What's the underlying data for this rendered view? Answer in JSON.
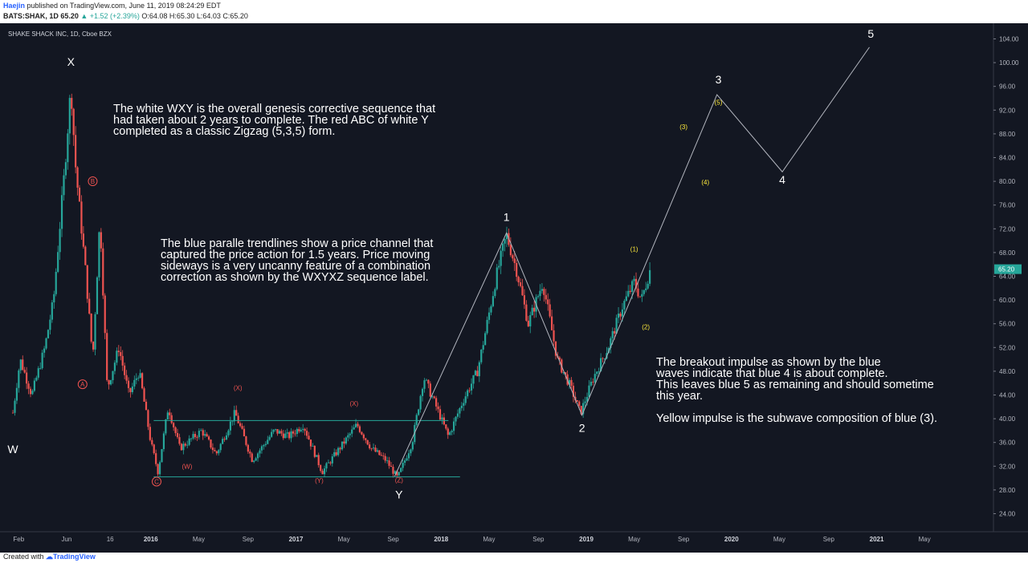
{
  "header": {
    "author": "Haejin",
    "published": "published on TradingView.com, June 11, 2019 08:24:29 EDT",
    "symbol_line_prefix": "BATS:SHAK, 1D 65.20",
    "change": "▲ +1.52 (+2.39%)",
    "ohlc": "O:64.08 H:65.30 L:64.03 C:65.20"
  },
  "chart_title": "SHAKE SHACK INC, 1D, Cboe BZX",
  "notes": {
    "wxy": "The white WXY is the overall genesis corrective sequence that\nhad taken about 2 years to complete. The red ABC of white Y\ncompleted as a classic Zigzag (5,3,5) form.",
    "channel": "The blue paralle trendlines show a price channel that\ncaptured the price action for 1.5 years. Price moving\nsideways is a very uncanny feature of a combination\ncorrection as shown by the WXYXZ sequence label.",
    "breakout": "The breakout impulse as shown by the blue\nwaves indicate that blue 4 is about complete.\nThis leaves blue 5 as remaining and should sometime\nthis year.\n\nYellow impulse is the subwave composition of blue (3)."
  },
  "footer": {
    "created_with": "Created with",
    "brand": "TradingView"
  },
  "chart_data": {
    "type": "candlestick",
    "title": "SHAKE SHACK INC, 1D, Cboe BZX",
    "y_axis": {
      "ticks": [
        24,
        28,
        32,
        36,
        40,
        44,
        48,
        52,
        56,
        60,
        64,
        68,
        72,
        76,
        80,
        84,
        88,
        92,
        96,
        100,
        104
      ],
      "tick_labels": [
        "24.00",
        "28.00",
        "32.00",
        "36.00",
        "40.00",
        "44.00",
        "48.00",
        "52.00",
        "56.00",
        "60.00",
        "64.00",
        "68.00",
        "72.00",
        "76.00",
        "80.00",
        "84.00",
        "88.00",
        "92.00",
        "96.00",
        "100.00",
        "104.00"
      ],
      "ylim": [
        21.5,
        106.5
      ],
      "position": "right"
    },
    "x_axis": {
      "ticks": [
        "Feb",
        "Jun",
        "16",
        "2016",
        "May",
        "Sep",
        "2017",
        "May",
        "Sep",
        "2018",
        "May",
        "Sep",
        "2019",
        "May",
        "Sep",
        "2020",
        "May",
        "Sep",
        "2021",
        "May"
      ],
      "xlim": [
        2015.0,
        2021.6
      ],
      "tick_positions": [
        2015.09,
        2015.42,
        2015.72,
        2016.0,
        2016.33,
        2016.67,
        2017.0,
        2017.33,
        2017.67,
        2018.0,
        2018.33,
        2018.67,
        2019.0,
        2019.33,
        2019.67,
        2020.0,
        2020.33,
        2020.67,
        2021.0,
        2021.33
      ]
    },
    "price_series_keypoints": [
      {
        "x": 2015.05,
        "y": 41
      },
      {
        "x": 2015.1,
        "y": 50
      },
      {
        "x": 2015.18,
        "y": 44
      },
      {
        "x": 2015.27,
        "y": 52
      },
      {
        "x": 2015.33,
        "y": 60
      },
      {
        "x": 2015.4,
        "y": 80
      },
      {
        "x": 2015.45,
        "y": 96
      },
      {
        "x": 2015.48,
        "y": 83
      },
      {
        "x": 2015.55,
        "y": 65
      },
      {
        "x": 2015.6,
        "y": 50
      },
      {
        "x": 2015.65,
        "y": 74
      },
      {
        "x": 2015.7,
        "y": 45
      },
      {
        "x": 2015.78,
        "y": 52
      },
      {
        "x": 2015.85,
        "y": 44
      },
      {
        "x": 2015.92,
        "y": 48
      },
      {
        "x": 2016.0,
        "y": 36
      },
      {
        "x": 2016.05,
        "y": 31
      },
      {
        "x": 2016.12,
        "y": 42
      },
      {
        "x": 2016.2,
        "y": 35
      },
      {
        "x": 2016.35,
        "y": 38
      },
      {
        "x": 2016.45,
        "y": 34
      },
      {
        "x": 2016.58,
        "y": 41
      },
      {
        "x": 2016.7,
        "y": 33
      },
      {
        "x": 2016.85,
        "y": 38
      },
      {
        "x": 2016.95,
        "y": 37
      },
      {
        "x": 2017.05,
        "y": 39
      },
      {
        "x": 2017.18,
        "y": 31
      },
      {
        "x": 2017.3,
        "y": 35
      },
      {
        "x": 2017.42,
        "y": 39
      },
      {
        "x": 2017.52,
        "y": 35
      },
      {
        "x": 2017.62,
        "y": 33
      },
      {
        "x": 2017.7,
        "y": 30
      },
      {
        "x": 2017.8,
        "y": 36
      },
      {
        "x": 2017.88,
        "y": 47
      },
      {
        "x": 2017.95,
        "y": 43
      },
      {
        "x": 2018.05,
        "y": 37
      },
      {
        "x": 2018.15,
        "y": 43
      },
      {
        "x": 2018.25,
        "y": 48
      },
      {
        "x": 2018.3,
        "y": 54
      },
      {
        "x": 2018.38,
        "y": 64
      },
      {
        "x": 2018.45,
        "y": 71
      },
      {
        "x": 2018.52,
        "y": 65
      },
      {
        "x": 2018.6,
        "y": 56
      },
      {
        "x": 2018.7,
        "y": 63
      },
      {
        "x": 2018.8,
        "y": 50
      },
      {
        "x": 2018.88,
        "y": 46
      },
      {
        "x": 2018.96,
        "y": 41
      },
      {
        "x": 2019.05,
        "y": 47
      },
      {
        "x": 2019.15,
        "y": 52
      },
      {
        "x": 2019.25,
        "y": 59
      },
      {
        "x": 2019.33,
        "y": 63
      },
      {
        "x": 2019.38,
        "y": 60
      },
      {
        "x": 2019.44,
        "y": 65.2
      }
    ],
    "trendlines": [
      {
        "name": "channel upper",
        "color": "#26a69a",
        "points": [
          [
            2016.02,
            39.7
          ],
          [
            2018.05,
            39.7
          ]
        ]
      },
      {
        "name": "channel lower",
        "color": "#26a69a",
        "points": [
          [
            2016.02,
            30.2
          ],
          [
            2018.13,
            30.2
          ]
        ]
      }
    ],
    "wave_path": {
      "color": "#b2b5be",
      "points": [
        [
          2017.68,
          30.3
        ],
        [
          2018.45,
          71.3
        ],
        [
          2018.97,
          40.6
        ],
        [
          2019.9,
          94.6
        ],
        [
          2020.35,
          81.6
        ],
        [
          2020.95,
          102.6
        ]
      ]
    },
    "labels": [
      {
        "text": "X",
        "x": 2015.45,
        "y": 99.5,
        "color": "#ffffff"
      },
      {
        "text": "W",
        "x": 2015.05,
        "y": 34.2,
        "color": "#ffffff"
      },
      {
        "text": "Y",
        "x": 2017.71,
        "y": 26.6,
        "color": "#ffffff"
      },
      {
        "text": "1",
        "x": 2018.45,
        "y": 73.3,
        "color": "#ffffff"
      },
      {
        "text": "2",
        "x": 2018.97,
        "y": 37.8,
        "color": "#ffffff"
      },
      {
        "text": "3",
        "x": 2019.91,
        "y": 96.5,
        "color": "#ffffff"
      },
      {
        "text": "4",
        "x": 2020.35,
        "y": 79.6,
        "color": "#ffffff"
      },
      {
        "text": "5",
        "x": 2020.96,
        "y": 104.2,
        "color": "#ffffff"
      },
      {
        "text": "B",
        "x": 2015.6,
        "y": 79.6,
        "color": "#ef5350",
        "circled": true
      },
      {
        "text": "A",
        "x": 2015.53,
        "y": 45.4,
        "color": "#ef5350",
        "circled": true
      },
      {
        "text": "C",
        "x": 2016.04,
        "y": 29.0,
        "color": "#ef5350",
        "circled": true
      },
      {
        "text": "(X)",
        "x": 2016.6,
        "y": 44.8,
        "color": "#ef5350"
      },
      {
        "text": "(W)",
        "x": 2016.25,
        "y": 31.6,
        "color": "#ef5350"
      },
      {
        "text": "(X)",
        "x": 2017.4,
        "y": 42.2,
        "color": "#ef5350"
      },
      {
        "text": "(Y)",
        "x": 2017.16,
        "y": 29.2,
        "color": "#ef5350"
      },
      {
        "text": "(Z)",
        "x": 2017.71,
        "y": 29.3,
        "color": "#ef5350"
      },
      {
        "text": "(1)",
        "x": 2019.33,
        "y": 68.2,
        "color": "#ffeb3b"
      },
      {
        "text": "(2)",
        "x": 2019.41,
        "y": 55.1,
        "color": "#ffeb3b"
      },
      {
        "text": "(3)",
        "x": 2019.67,
        "y": 88.8,
        "color": "#ffeb3b"
      },
      {
        "text": "(4)",
        "x": 2019.82,
        "y": 79.5,
        "color": "#ffeb3b"
      },
      {
        "text": "(5)",
        "x": 2019.91,
        "y": 92.9,
        "color": "#ffeb3b"
      }
    ],
    "last_price": {
      "value": 65.2,
      "label": "65.20",
      "color": "#26a69a"
    },
    "colors": {
      "up": "#26a69a",
      "down": "#ef5350",
      "background": "#131722",
      "axis_text": "#b2b5be"
    }
  }
}
